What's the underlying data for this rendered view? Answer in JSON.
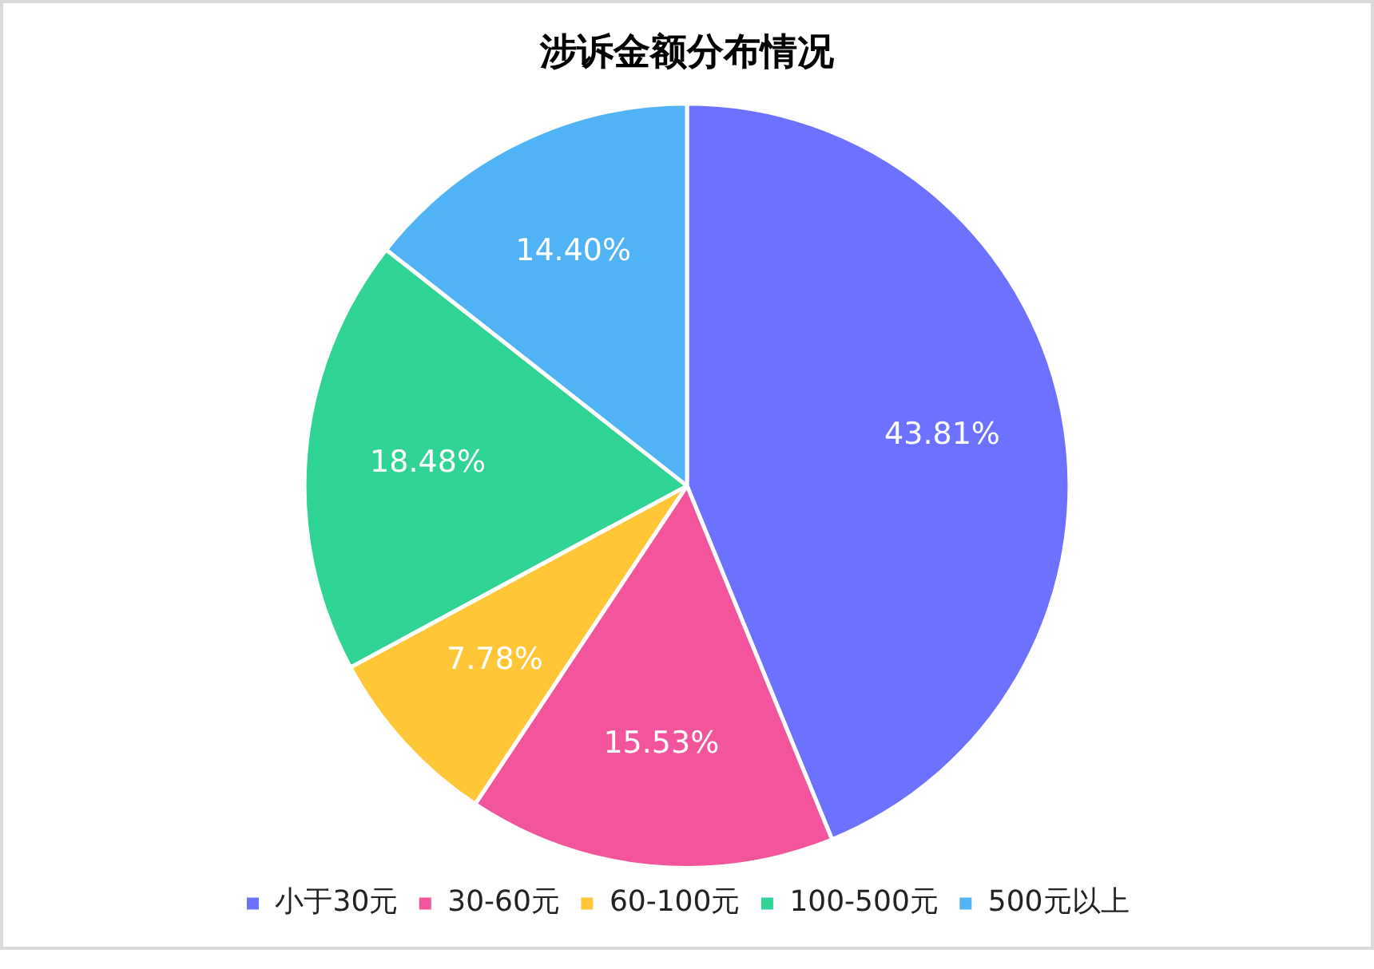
{
  "chart_data": {
    "type": "pie",
    "title": "涉诉金额分布情况",
    "categories": [
      "小于30元",
      "30-60元",
      "60-100元",
      "100-500元",
      "500元以上"
    ],
    "values": [
      43.81,
      15.53,
      7.78,
      18.48,
      14.4
    ],
    "value_labels": [
      "43.81%",
      "15.53%",
      "7.78%",
      "18.48%",
      "14.40%"
    ],
    "colors": [
      "#6c72ff",
      "#f2559b",
      "#ffc637",
      "#2fd394",
      "#4fb3f6"
    ],
    "legend": "bottom"
  }
}
